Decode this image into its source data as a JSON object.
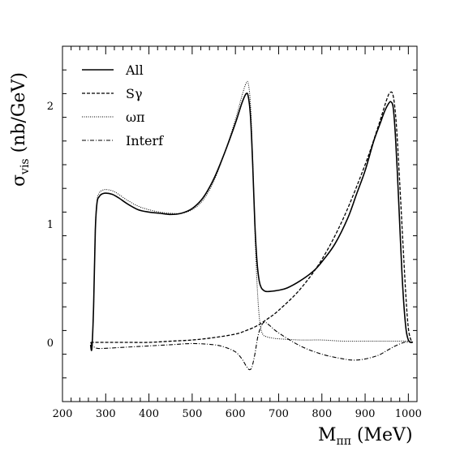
{
  "chart_data": {
    "type": "line",
    "xlabel": "M",
    "xlabel_sub": "ππ",
    "xlabel_unit": " (MeV)",
    "ylabel": "σ",
    "ylabel_sub": "vis",
    "ylabel_unit": " (nb/GeV)",
    "xlim": [
      200,
      1020
    ],
    "ylim": [
      -0.5,
      2.5
    ],
    "x_ticks": [
      200,
      300,
      400,
      500,
      600,
      700,
      800,
      900,
      1000
    ],
    "y_ticks": [
      0,
      1,
      2
    ],
    "x_tick_labels": [
      "200",
      "300",
      "400",
      "500",
      "600",
      "700",
      "800",
      "900",
      "1000"
    ],
    "y_tick_labels": [
      "0",
      "1",
      "2"
    ],
    "legend_position": "top-left",
    "grid": false,
    "series": [
      {
        "name": "All",
        "style": "solid",
        "x": [
          265,
          268,
          272,
          276,
          280,
          285,
          290,
          300,
          315,
          330,
          350,
          375,
          400,
          425,
          450,
          475,
          500,
          525,
          550,
          575,
          600,
          615,
          625,
          630,
          635,
          640,
          645,
          650,
          655,
          660,
          665,
          670,
          680,
          700,
          720,
          750,
          780,
          800,
          830,
          860,
          880,
          900,
          920,
          935,
          945,
          955,
          960,
          965,
          970,
          975,
          980,
          985,
          990,
          995,
          1000,
          1005,
          1010
        ],
        "y": [
          -0.02,
          -0.05,
          0.3,
          0.95,
          1.18,
          1.23,
          1.25,
          1.26,
          1.25,
          1.22,
          1.17,
          1.12,
          1.1,
          1.09,
          1.08,
          1.09,
          1.13,
          1.22,
          1.38,
          1.6,
          1.85,
          2.02,
          2.1,
          2.07,
          1.9,
          1.5,
          1.0,
          0.68,
          0.52,
          0.46,
          0.44,
          0.43,
          0.43,
          0.44,
          0.46,
          0.52,
          0.6,
          0.68,
          0.83,
          1.05,
          1.25,
          1.45,
          1.7,
          1.85,
          1.95,
          2.02,
          2.03,
          1.98,
          1.75,
          1.4,
          1.0,
          0.6,
          0.3,
          0.1,
          0.02,
          0.0,
          0.0
        ]
      },
      {
        "name": "Sγ",
        "style": "dashed",
        "x": [
          265,
          280,
          300,
          350,
          400,
          450,
          500,
          550,
          600,
          625,
          650,
          675,
          700,
          750,
          800,
          850,
          900,
          930,
          950,
          958,
          965,
          972,
          980,
          988,
          995,
          1000,
          1005,
          1010
        ],
        "y": [
          0.0,
          0.0,
          0.0,
          0.0,
          0.0,
          0.01,
          0.02,
          0.04,
          0.07,
          0.1,
          0.14,
          0.2,
          0.27,
          0.45,
          0.7,
          1.05,
          1.5,
          1.82,
          2.05,
          2.11,
          2.08,
          1.85,
          1.35,
          0.8,
          0.35,
          0.12,
          0.03,
          0.0
        ]
      },
      {
        "name": "ωπ",
        "style": "dotted",
        "x": [
          265,
          268,
          272,
          276,
          280,
          285,
          290,
          300,
          315,
          330,
          350,
          375,
          400,
          425,
          450,
          475,
          500,
          525,
          550,
          575,
          600,
          615,
          625,
          630,
          635,
          640,
          645,
          650,
          655,
          660,
          665,
          670,
          680,
          700,
          750,
          800,
          850,
          900,
          950,
          1000,
          1010
        ],
        "y": [
          -0.02,
          -0.05,
          0.3,
          0.97,
          1.2,
          1.26,
          1.28,
          1.29,
          1.28,
          1.25,
          1.2,
          1.15,
          1.12,
          1.1,
          1.09,
          1.09,
          1.12,
          1.2,
          1.36,
          1.6,
          1.88,
          2.08,
          2.19,
          2.18,
          2.0,
          1.55,
          0.95,
          0.5,
          0.22,
          0.1,
          0.06,
          0.05,
          0.04,
          0.03,
          0.02,
          0.02,
          0.01,
          0.01,
          0.01,
          0.01,
          0.0
        ]
      },
      {
        "name": "Interf",
        "style": "dashdot",
        "x": [
          265,
          270,
          280,
          300,
          350,
          400,
          450,
          500,
          550,
          575,
          600,
          615,
          625,
          632,
          638,
          645,
          652,
          660,
          668,
          680,
          700,
          750,
          800,
          850,
          875,
          900,
          930,
          950,
          970,
          990,
          1000,
          1010
        ],
        "y": [
          0.0,
          -0.03,
          -0.05,
          -0.05,
          -0.04,
          -0.03,
          -0.02,
          -0.01,
          -0.02,
          -0.04,
          -0.08,
          -0.14,
          -0.2,
          -0.23,
          -0.21,
          -0.1,
          0.05,
          0.14,
          0.17,
          0.14,
          0.08,
          -0.03,
          -0.1,
          -0.14,
          -0.15,
          -0.14,
          -0.11,
          -0.07,
          -0.03,
          0.0,
          0.0,
          0.0
        ]
      }
    ]
  }
}
